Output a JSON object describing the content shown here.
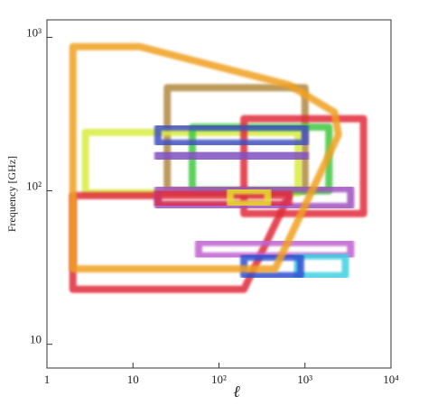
{
  "chart_data": {
    "type": "region",
    "xlabel": "ℓ",
    "ylabel": "Frequency [GHz]",
    "log_x": true,
    "log_y": true,
    "xlim": [
      1,
      10000
    ],
    "ylim": [
      7,
      1300
    ],
    "xticks": [
      1,
      10,
      {
        "value": 100,
        "label": "10²"
      },
      {
        "value": 1000,
        "label": "10³"
      },
      {
        "value": 10000,
        "label": "10⁴"
      }
    ],
    "yticks": [
      10,
      {
        "value": 100,
        "label": "10²"
      },
      {
        "value": 1000,
        "label": "10³"
      }
    ],
    "series": [
      {
        "color": "#b08840",
        "x": [
          25,
          1000,
          1000,
          25
        ],
        "y": [
          470,
          470,
          100,
          100
        ]
      },
      {
        "color": "#d8ec40",
        "x": [
          2.8,
          830,
          830,
          2.8
        ],
        "y": [
          240,
          240,
          97,
          97
        ]
      },
      {
        "color": "#40c840",
        "x": [
          49,
          1900,
          1900,
          49
        ],
        "y": [
          260,
          260,
          100,
          100
        ]
      },
      {
        "color": "#e02838",
        "x": [
          195,
          4800,
          4800,
          195
        ],
        "y": [
          295,
          295,
          71,
          71
        ]
      },
      {
        "color": "#e02838",
        "x": [
          2,
          650,
          195,
          2
        ],
        "y": [
          93,
          93,
          22.8,
          22.8
        ]
      },
      {
        "color": "#4050c0",
        "x": [
          19.5,
          1000,
          1000,
          19.5
        ],
        "y": [
          260,
          260,
          204,
          204
        ]
      },
      {
        "color": "#8050c0",
        "x": [
          19.5,
          1000,
          1000,
          19.5
        ],
        "y": [
          177,
          177,
          162,
          162
        ]
      },
      {
        "color": "#a050c0",
        "x": [
          19.5,
          3400,
          3400,
          19.5
        ],
        "y": [
          103,
          103,
          79,
          79
        ]
      },
      {
        "color": "#d83050",
        "x": [
          19.5,
          650,
          650,
          19.5
        ],
        "y": [
          98,
          98,
          82,
          82
        ]
      },
      {
        "color": "#e8e030",
        "x": [
          135,
          370,
          370,
          135
        ],
        "y": [
          100,
          100,
          82,
          82
        ]
      },
      {
        "color": "#c060d0",
        "x": [
          58,
          3400,
          3400,
          58
        ],
        "y": [
          46,
          46,
          37.6,
          37.6
        ]
      },
      {
        "color": "#40d0e0",
        "x": [
          820,
          2950,
          2950,
          820
        ],
        "y": [
          37.6,
          37.6,
          28,
          28
        ]
      },
      {
        "color": "#3050d0",
        "x": [
          195,
          890,
          890,
          195
        ],
        "y": [
          37,
          37,
          28,
          28
        ]
      },
      {
        "color": "#f0a020",
        "x": [
          2,
          12,
          650,
          2200,
          2450,
          450,
          2
        ],
        "y": [
          870,
          870,
          490,
          325,
          232,
          31,
          31
        ]
      }
    ]
  }
}
